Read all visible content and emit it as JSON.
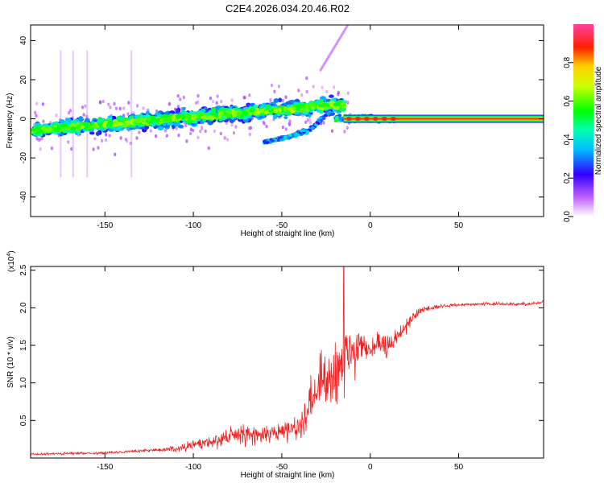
{
  "chart_data": [
    {
      "type": "heatmap",
      "title": "C2E4.2026.034.20.46.R02",
      "xlabel": "Height of straight line (km)",
      "ylabel": "Frequency (Hz)",
      "xlim": [
        -192,
        98
      ],
      "ylim": [
        -50,
        48
      ],
      "xticks": [
        "-150",
        "-100",
        "-50",
        "0",
        "50"
      ],
      "yticks": [
        "-40",
        "-20",
        "0",
        "20",
        "40"
      ],
      "colorbar": {
        "label": "Normalized spectral amplitude",
        "ticks": [
          "0.0",
          "0.2",
          "0.4",
          "0.6",
          "0.8"
        ],
        "range": [
          0,
          1
        ]
      },
      "features": {
        "main_band_start": [
          -192,
          -6
        ],
        "main_band_end": [
          -20,
          7
        ],
        "steady_line_from": -15,
        "steady_line_freq": 0,
        "secondary_branch": [
          [
            -60,
            -12
          ],
          [
            -45,
            -9
          ],
          [
            -33,
            -5
          ],
          [
            -22,
            5
          ]
        ]
      }
    },
    {
      "type": "line",
      "xlabel": "Height of straight line (km)",
      "ylabel": "SNR (10 * v/v)",
      "scale_label": "(x10",
      "scale_exponent": "4",
      "scale_close": ")",
      "xlim": [
        -192,
        98
      ],
      "ylim": [
        0,
        2.55
      ],
      "xticks": [
        "-150",
        "-100",
        "-50",
        "0",
        "50"
      ],
      "yticks": [
        "0.5",
        "1.0",
        "1.5",
        "2.0",
        "2.5"
      ],
      "series": [
        {
          "color": "#ee2222",
          "envelope": [
            [
              -192,
              0.05
            ],
            [
              -150,
              0.07
            ],
            [
              -110,
              0.12
            ],
            [
              -90,
              0.22
            ],
            [
              -75,
              0.32
            ],
            [
              -60,
              0.3
            ],
            [
              -50,
              0.35
            ],
            [
              -40,
              0.45
            ],
            [
              -33,
              0.75
            ],
            [
              -28,
              1.0
            ],
            [
              -22,
              1.1
            ],
            [
              -18,
              1.2
            ],
            [
              -14,
              1.3
            ],
            [
              -10,
              1.35
            ],
            [
              -5,
              1.45
            ],
            [
              0,
              1.45
            ],
            [
              5,
              1.5
            ],
            [
              10,
              1.45
            ],
            [
              15,
              1.6
            ],
            [
              20,
              1.75
            ],
            [
              25,
              1.9
            ],
            [
              30,
              1.98
            ],
            [
              40,
              2.02
            ],
            [
              50,
              2.04
            ],
            [
              60,
              2.05
            ],
            [
              75,
              2.05
            ],
            [
              90,
              2.05
            ],
            [
              98,
              2.08
            ]
          ],
          "noise_amplitude": [
            [
              -192,
              0.02
            ],
            [
              -120,
              0.03
            ],
            [
              -100,
              0.1
            ],
            [
              -75,
              0.2
            ],
            [
              -55,
              0.15
            ],
            [
              -40,
              0.3
            ],
            [
              -30,
              0.6
            ],
            [
              -20,
              0.7
            ],
            [
              -10,
              0.5
            ],
            [
              0,
              0.25
            ],
            [
              15,
              0.2
            ],
            [
              25,
              0.08
            ],
            [
              40,
              0.03
            ],
            [
              98,
              0.03
            ]
          ],
          "peak": [
            -15,
            2.55
          ]
        }
      ]
    }
  ]
}
